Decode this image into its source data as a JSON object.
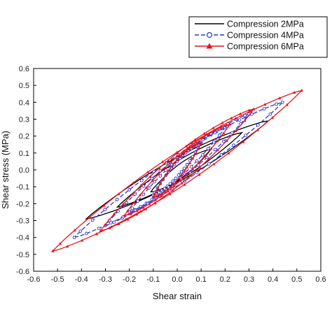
{
  "chart_data": {
    "type": "line",
    "xlabel": "Shear strain",
    "ylabel": "Shear stress (MPa)",
    "xlim": [
      -0.6,
      0.6
    ],
    "ylim": [
      -0.6,
      0.6
    ],
    "x_ticks": [
      "-0.6",
      "-0.5",
      "-0.4",
      "-0.3",
      "-0.2",
      "-0.1",
      "0.0",
      "0.1",
      "0.2",
      "0.3",
      "0.4",
      "0.5",
      "0.6"
    ],
    "y_ticks": [
      "-0.6",
      "-0.5",
      "-0.4",
      "-0.3",
      "-0.2",
      "-0.1",
      "0.0",
      "0.1",
      "0.2",
      "0.3",
      "0.4",
      "0.5",
      "0.6"
    ],
    "grid": false,
    "legend_position": "top-right, outside plot",
    "series": [
      {
        "name": "Compression 2MPa",
        "color": "#000000",
        "marker": "none",
        "loops": [
          {
            "x_min": -0.11,
            "y_min": -0.13,
            "x_max": 0.14,
            "y_max": 0.12,
            "w": 0.045
          },
          {
            "x_min": -0.25,
            "y_min": -0.22,
            "x_max": 0.27,
            "y_max": 0.22,
            "w": 0.06
          },
          {
            "x_min": -0.38,
            "y_min": -0.29,
            "x_max": 0.38,
            "y_max": 0.29,
            "w": 0.075
          }
        ]
      },
      {
        "name": "Compression 4MPa",
        "color": "#2a35d6",
        "marker": "circle",
        "loops": [
          {
            "x_min": -0.1,
            "y_min": -0.15,
            "x_max": 0.1,
            "y_max": 0.16,
            "w": 0.045
          },
          {
            "x_min": -0.2,
            "y_min": -0.25,
            "x_max": 0.2,
            "y_max": 0.25,
            "w": 0.06
          },
          {
            "x_min": -0.3,
            "y_min": -0.33,
            "x_max": 0.3,
            "y_max": 0.33,
            "w": 0.075
          },
          {
            "x_min": -0.43,
            "y_min": -0.4,
            "x_max": 0.44,
            "y_max": 0.4,
            "w": 0.09
          }
        ]
      },
      {
        "name": "Compression 6MPa",
        "color": "#e8141c",
        "marker": "triangle",
        "loops": [
          {
            "x_min": -0.1,
            "y_min": -0.16,
            "x_max": 0.1,
            "y_max": 0.16,
            "w": 0.06
          },
          {
            "x_min": -0.22,
            "y_min": -0.27,
            "x_max": 0.22,
            "y_max": 0.27,
            "w": 0.08
          },
          {
            "x_min": -0.32,
            "y_min": -0.36,
            "x_max": 0.32,
            "y_max": 0.36,
            "w": 0.1
          },
          {
            "x_min": -0.52,
            "y_min": -0.48,
            "x_max": 0.52,
            "y_max": 0.47,
            "w": 0.11
          }
        ]
      }
    ]
  }
}
